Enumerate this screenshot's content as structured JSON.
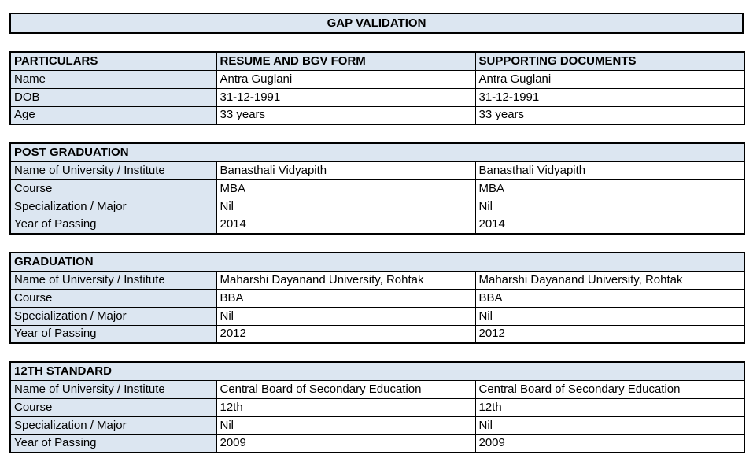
{
  "title": "GAP VALIDATION",
  "colors": {
    "header_bg": "#dce6f1",
    "border_color": "#000000",
    "page_bg": "#ffffff",
    "text_color": "#000000"
  },
  "particulars_table": {
    "headers": [
      "PARTICULARS",
      "RESUME AND BGV FORM",
      "SUPPORTING DOCUMENTS"
    ],
    "rows": [
      {
        "label": "Name",
        "resume": "Antra Guglani",
        "supporting": "Antra Guglani"
      },
      {
        "label": "DOB",
        "resume": "31-12-1991",
        "supporting": "31-12-1991"
      },
      {
        "label": "Age",
        "resume": "33 years",
        "supporting": "33 years"
      }
    ]
  },
  "sections": [
    {
      "title": "POST GRADUATION",
      "rows": [
        {
          "label": "Name of University / Institute",
          "resume": "Banasthali Vidyapith",
          "supporting": "Banasthali Vidyapith"
        },
        {
          "label": "Course",
          "resume": "MBA",
          "supporting": "MBA"
        },
        {
          "label": "Specialization / Major",
          "resume": "Nil",
          "supporting": "Nil"
        },
        {
          "label": "Year of Passing",
          "resume": "2014",
          "supporting": "2014"
        }
      ]
    },
    {
      "title": "GRADUATION",
      "rows": [
        {
          "label": "Name of University / Institute",
          "resume": "Maharshi Dayanand University, Rohtak",
          "supporting": "Maharshi Dayanand University, Rohtak"
        },
        {
          "label": "Course",
          "resume": "BBA",
          "supporting": "BBA"
        },
        {
          "label": "Specialization / Major",
          "resume": "Nil",
          "supporting": "Nil"
        },
        {
          "label": "Year of Passing",
          "resume": "2012",
          "supporting": "2012"
        }
      ]
    },
    {
      "title": "12TH STANDARD",
      "rows": [
        {
          "label": "Name of University / Institute",
          "resume": "Central Board of Secondary Education",
          "supporting": "Central Board of Secondary Education"
        },
        {
          "label": "Course",
          "resume": "12th",
          "supporting": "12th"
        },
        {
          "label": "Specialization / Major",
          "resume": "Nil",
          "supporting": "Nil"
        },
        {
          "label": "Year of Passing",
          "resume": "2009",
          "supporting": "2009"
        }
      ]
    }
  ]
}
